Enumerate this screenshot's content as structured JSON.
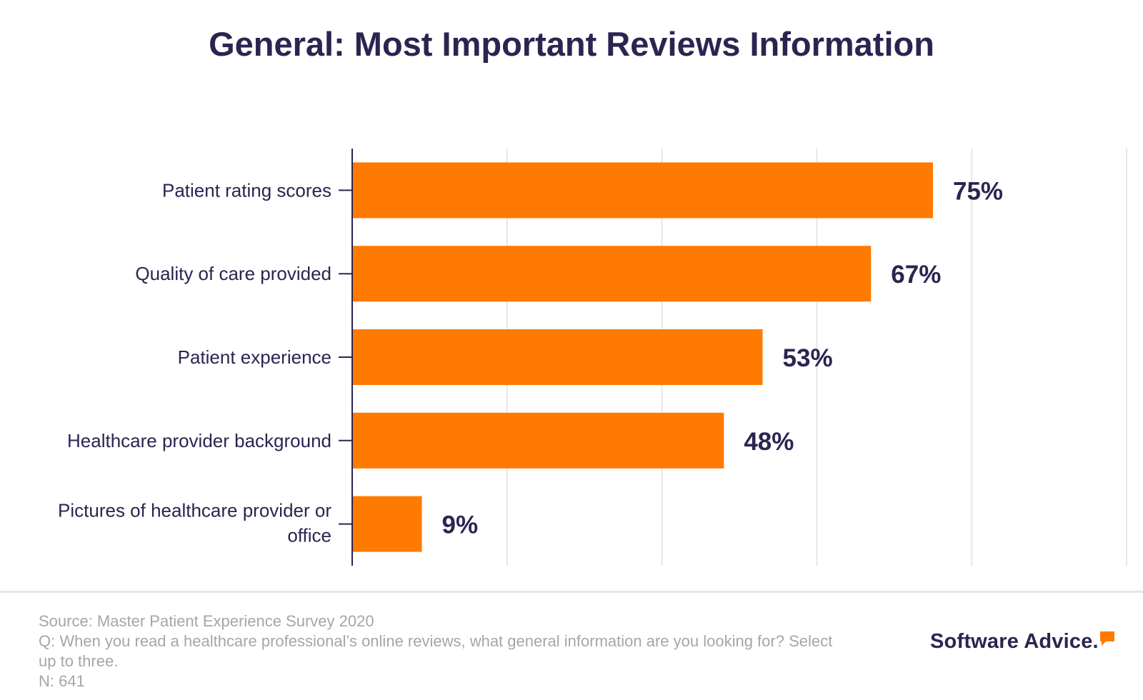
{
  "chart_data": {
    "type": "bar",
    "orientation": "horizontal",
    "title": "General: Most Important Reviews Information",
    "categories": [
      "Patient rating scores",
      "Quality of care provided",
      "Patient experience",
      "Healthcare provider background",
      "Pictures of healthcare provider or office"
    ],
    "values": [
      75,
      67,
      53,
      48,
      9
    ],
    "data_labels": [
      "75%",
      "67%",
      "53%",
      "48%",
      "9%"
    ],
    "xlim": [
      0,
      100
    ],
    "grid": true,
    "bar_color": "#ff7a00"
  },
  "footer": {
    "source": "Source: Master Patient Experience Survey 2020",
    "question": "Q: When you read a healthcare professional’s online reviews, what general information are you looking for? Select up to three.",
    "n": "N: 641"
  },
  "logo": {
    "text": "Software Advice."
  },
  "colors": {
    "title": "#2a2550",
    "bar": "#ff7a00",
    "footer_text": "#a6a6a6",
    "grid": "#e6e6e6"
  }
}
